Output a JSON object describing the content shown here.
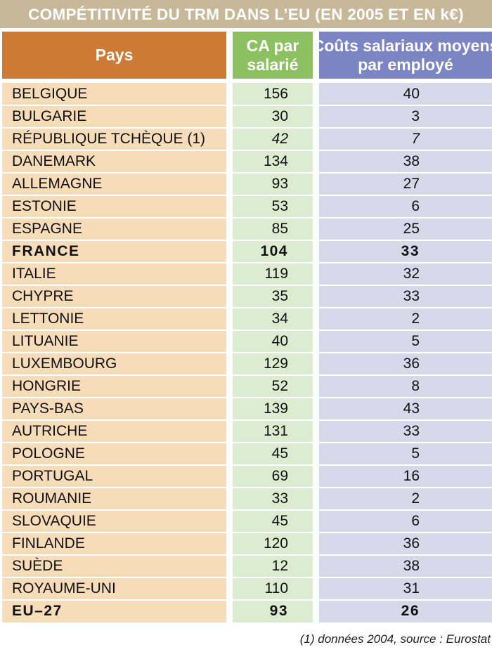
{
  "title": "COMPÉTITIVITÉ DU TRM DANS L’EU (EN 2005 ET EN k€)",
  "headers": {
    "pays": "Pays",
    "ca_line1": "CA par",
    "ca_line2": "salarié",
    "couts_line1": "Coûts salariaux moyens",
    "couts_line2": "par employé"
  },
  "footnote": "(1) données 2004, source : Eurostat",
  "colors": {
    "title_bar": "#c8b89a",
    "pays_header": "#cc7a35",
    "ca_header": "#8cc061",
    "couts_header": "#7c85c4",
    "pays_body": "#f6dcb9",
    "ca_body": "#dbecd0",
    "couts_body": "#d7d8ea"
  },
  "chart_data": {
    "type": "table",
    "columns": [
      "Pays",
      "CA par salarié",
      "Coûts salariaux moyens par employé"
    ],
    "rows": [
      {
        "pays": "BELGIQUE",
        "ca": "156",
        "couts": "40"
      },
      {
        "pays": "BULGARIE",
        "ca": "30",
        "couts": "3"
      },
      {
        "pays": "RÉPUBLIQUE TCHÈQUE (1)",
        "ca": "42",
        "couts": "7",
        "italic": true
      },
      {
        "pays": "DANEMARK",
        "ca": "134",
        "couts": "38"
      },
      {
        "pays": "ALLEMAGNE",
        "ca": "93",
        "couts": "27"
      },
      {
        "pays": "ESTONIE",
        "ca": "53",
        "couts": "6"
      },
      {
        "pays": "ESPAGNE",
        "ca": "85",
        "couts": "25"
      },
      {
        "pays": "FRANCE",
        "ca": "104",
        "couts": "33",
        "bold": true
      },
      {
        "pays": "ITALIE",
        "ca": "119",
        "couts": "32"
      },
      {
        "pays": "CHYPRE",
        "ca": "35",
        "couts": "33"
      },
      {
        "pays": "LETTONIE",
        "ca": "34",
        "couts": "2"
      },
      {
        "pays": "LITUANIE",
        "ca": "40",
        "couts": "5"
      },
      {
        "pays": "LUXEMBOURG",
        "ca": "129",
        "couts": "36"
      },
      {
        "pays": "HONGRIE",
        "ca": "52",
        "couts": "8"
      },
      {
        "pays": "PAYS-BAS",
        "ca": "139",
        "couts": "43"
      },
      {
        "pays": "AUTRICHE",
        "ca": "131",
        "couts": "33"
      },
      {
        "pays": "POLOGNE",
        "ca": "45",
        "couts": "5"
      },
      {
        "pays": "PORTUGAL",
        "ca": "69",
        "couts": "16"
      },
      {
        "pays": "ROUMANIE",
        "ca": "33",
        "couts": "2"
      },
      {
        "pays": "SLOVAQUIE",
        "ca": "45",
        "couts": "6"
      },
      {
        "pays": "FINLANDE",
        "ca": "120",
        "couts": "36"
      },
      {
        "pays": "SUÈDE",
        "ca": "12",
        "couts": "38"
      },
      {
        "pays": "ROYAUME-UNI",
        "ca": "110",
        "couts": "31"
      },
      {
        "pays": "EU–27",
        "ca": "93",
        "couts": "26",
        "bold": true
      }
    ]
  }
}
